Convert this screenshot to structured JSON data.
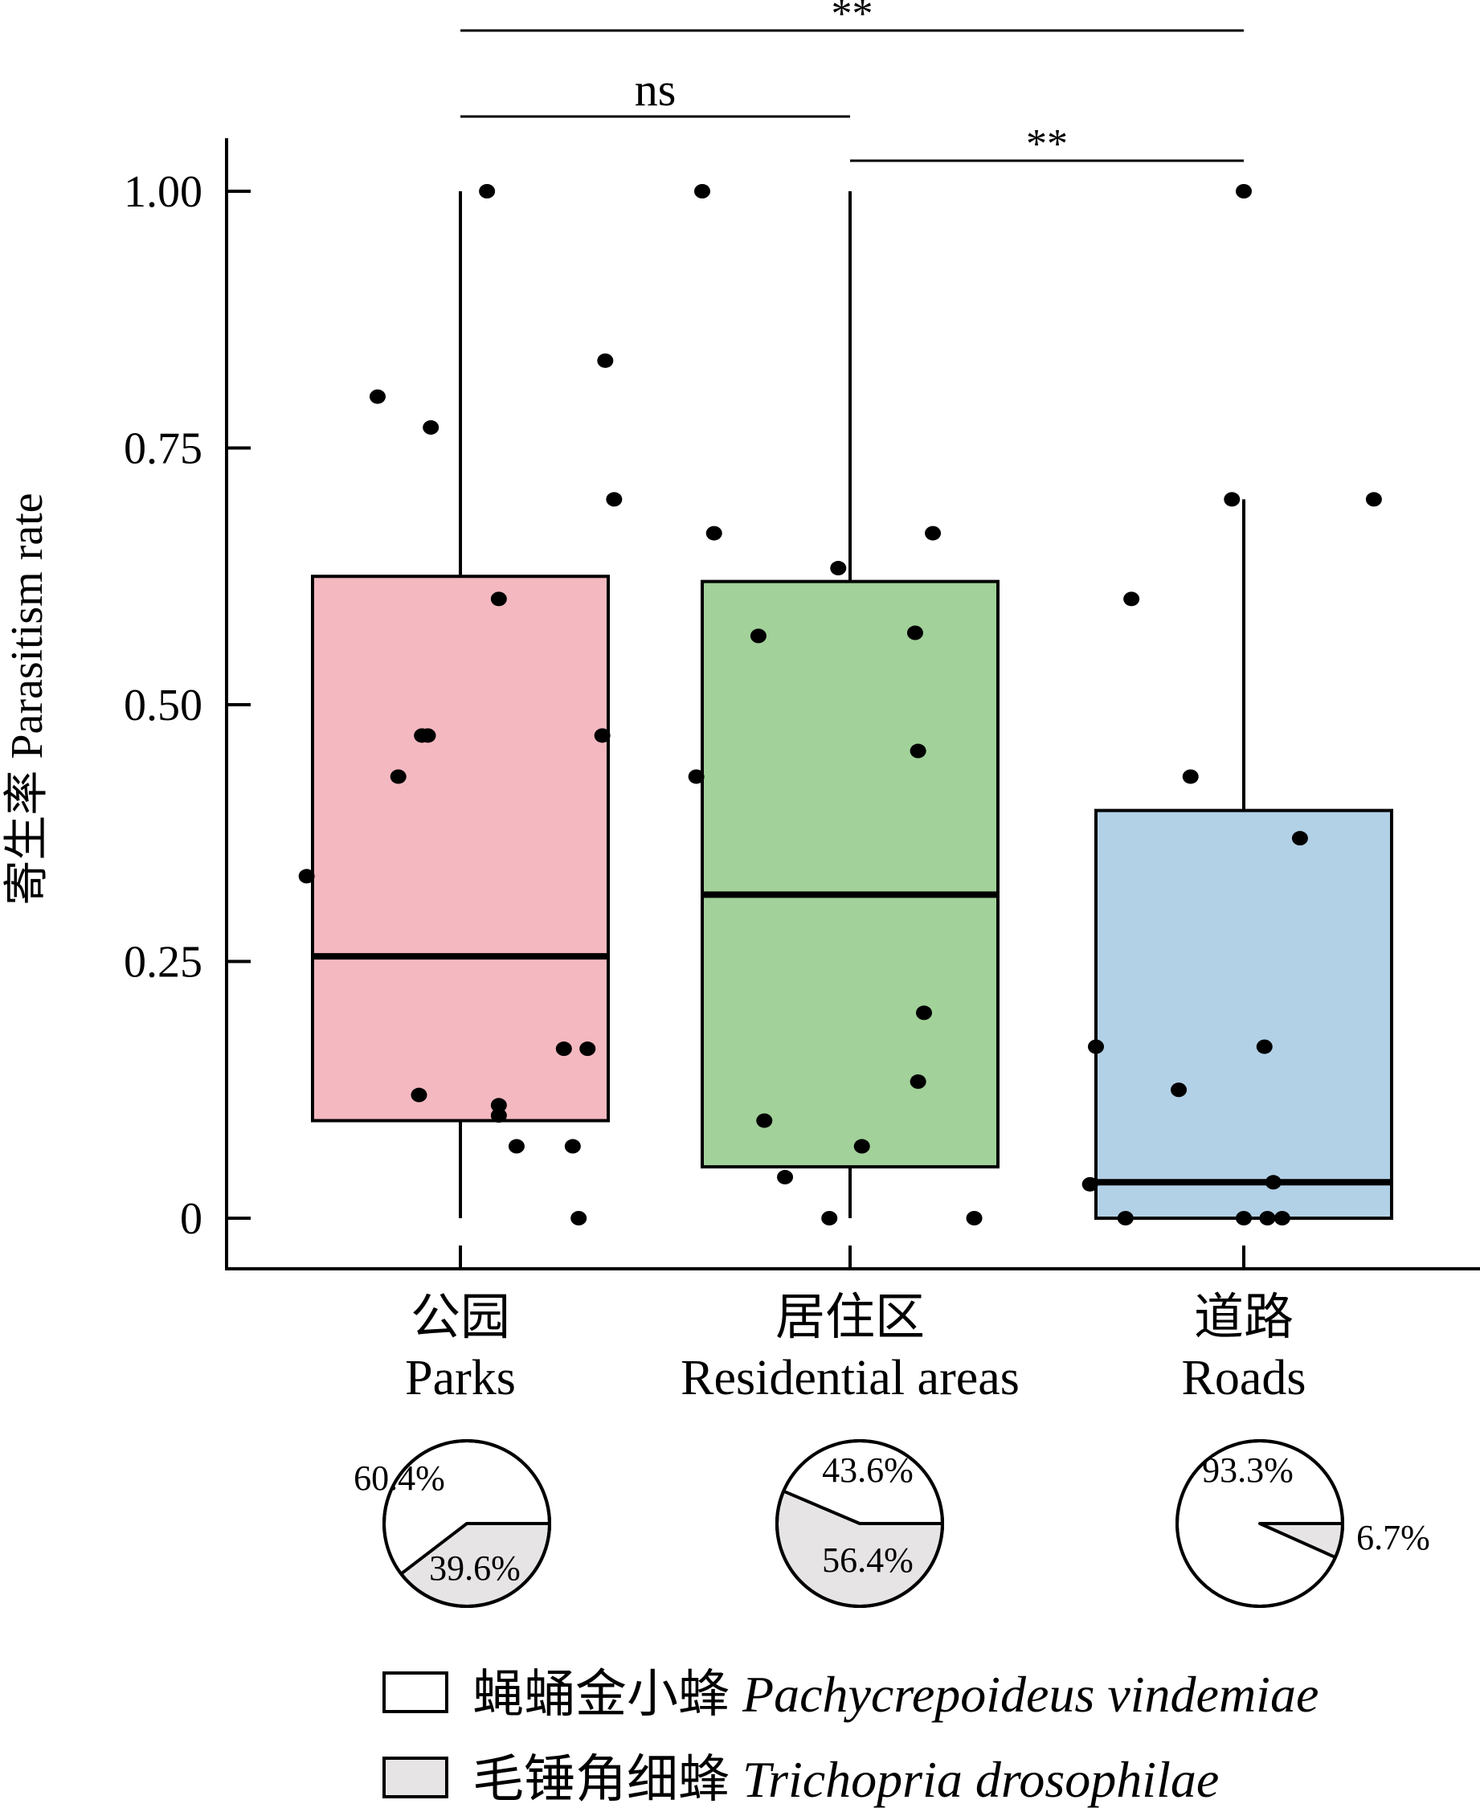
{
  "chart_data": {
    "type": "box",
    "ylabel": "寄生率 Parasitism rate",
    "ylim": [
      0,
      1.0
    ],
    "yticks": [
      {
        "value": 0,
        "label": "0"
      },
      {
        "value": 0.25,
        "label": "0.25"
      },
      {
        "value": 0.5,
        "label": "0.50"
      },
      {
        "value": 0.75,
        "label": "0.75"
      },
      {
        "value": 1.0,
        "label": "1.00"
      }
    ],
    "categories": [
      {
        "zh": "公园",
        "en": "Parks",
        "color": "#f4b8c0",
        "box": {
          "q1": 0.095,
          "median": 0.255,
          "q3": 0.625,
          "whisker_low": 0,
          "whisker_high": 1.0
        },
        "points": [
          {
            "pos": -0.52,
            "y": 0.333
          },
          {
            "pos": -0.28,
            "y": 0.8
          },
          {
            "pos": -0.21,
            "y": 0.43
          },
          {
            "pos": -0.14,
            "y": 0.12
          },
          {
            "pos": -0.13,
            "y": 0.47
          },
          {
            "pos": -0.11,
            "y": 0.47
          },
          {
            "pos": -0.1,
            "y": 0.77
          },
          {
            "pos": 0.09,
            "y": 1.0
          },
          {
            "pos": 0.13,
            "y": 0.603
          },
          {
            "pos": 0.13,
            "y": 0.11
          },
          {
            "pos": 0.13,
            "y": 0.1
          },
          {
            "pos": 0.19,
            "y": 0.07
          },
          {
            "pos": 0.35,
            "y": 0.165
          },
          {
            "pos": 0.38,
            "y": 0.07
          },
          {
            "pos": 0.4,
            "y": 0.0
          },
          {
            "pos": 0.43,
            "y": 0.165
          },
          {
            "pos": 0.48,
            "y": 0.47
          },
          {
            "pos": 0.49,
            "y": 0.835
          },
          {
            "pos": 0.52,
            "y": 0.7
          }
        ]
      },
      {
        "zh": "居住区",
        "en": "Residential areas",
        "color": "#a2d19a",
        "box": {
          "q1": 0.05,
          "median": 0.315,
          "q3": 0.62,
          "whisker_low": 0,
          "whisker_high": 1.0
        },
        "points": [
          {
            "pos": -0.52,
            "y": 0.43
          },
          {
            "pos": -0.5,
            "y": 1.0
          },
          {
            "pos": -0.46,
            "y": 0.667
          },
          {
            "pos": -0.31,
            "y": 0.567
          },
          {
            "pos": -0.29,
            "y": 0.095
          },
          {
            "pos": -0.22,
            "y": 0.04
          },
          {
            "pos": -0.07,
            "y": 0.0
          },
          {
            "pos": -0.04,
            "y": 0.633
          },
          {
            "pos": 0.04,
            "y": 0.07
          },
          {
            "pos": 0.22,
            "y": 0.57
          },
          {
            "pos": 0.23,
            "y": 0.455
          },
          {
            "pos": 0.23,
            "y": 0.133
          },
          {
            "pos": 0.25,
            "y": 0.2
          },
          {
            "pos": 0.28,
            "y": 0.667
          },
          {
            "pos": 0.42,
            "y": 0.0
          }
        ]
      },
      {
        "zh": "道路",
        "en": "Roads",
        "color": "#b3d1e6",
        "box": {
          "q1": 0.0,
          "median": 0.035,
          "q3": 0.397,
          "whisker_low": 0,
          "whisker_high": 0.7
        },
        "points": [
          {
            "pos": -0.52,
            "y": 0.033
          },
          {
            "pos": -0.5,
            "y": 0.167
          },
          {
            "pos": -0.4,
            "y": 0.0
          },
          {
            "pos": -0.38,
            "y": 0.603
          },
          {
            "pos": -0.22,
            "y": 0.125
          },
          {
            "pos": -0.18,
            "y": 0.43
          },
          {
            "pos": -0.04,
            "y": 0.7
          },
          {
            "pos": 0.0,
            "y": 1.0
          },
          {
            "pos": 0.0,
            "y": 0.0
          },
          {
            "pos": 0.07,
            "y": 0.167
          },
          {
            "pos": 0.08,
            "y": 0.0
          },
          {
            "pos": 0.1,
            "y": 0.035
          },
          {
            "pos": 0.13,
            "y": 0.0
          },
          {
            "pos": 0.19,
            "y": 0.37
          },
          {
            "pos": 0.44,
            "y": 0.7
          }
        ]
      }
    ],
    "significance": [
      {
        "from": 0,
        "to": 2,
        "label": "**"
      },
      {
        "from": 0,
        "to": 1,
        "label": "ns"
      },
      {
        "from": 1,
        "to": 2,
        "label": "**"
      }
    ],
    "pies": [
      {
        "category": "Parks",
        "slices": [
          {
            "species": 0,
            "percent": 60.4,
            "label": "60.4%"
          },
          {
            "species": 1,
            "percent": 39.6,
            "label": "39.6%"
          }
        ]
      },
      {
        "category": "Residential areas",
        "slices": [
          {
            "species": 0,
            "percent": 43.6,
            "label": "43.6%"
          },
          {
            "species": 1,
            "percent": 56.4,
            "label": "56.4%"
          }
        ]
      },
      {
        "category": "Roads",
        "slices": [
          {
            "species": 0,
            "percent": 93.3,
            "label": "93.3%"
          },
          {
            "species": 1,
            "percent": 6.7,
            "label": "6.7%"
          }
        ]
      }
    ],
    "legend": [
      {
        "zh": "蝇蛹金小蜂",
        "latin": "Pachycrepoideus vindemiae",
        "color": "#ffffff"
      },
      {
        "zh": "毛锤角细蜂",
        "latin": "Trichopria drosophilae",
        "color": "#e6e4e4"
      }
    ]
  }
}
